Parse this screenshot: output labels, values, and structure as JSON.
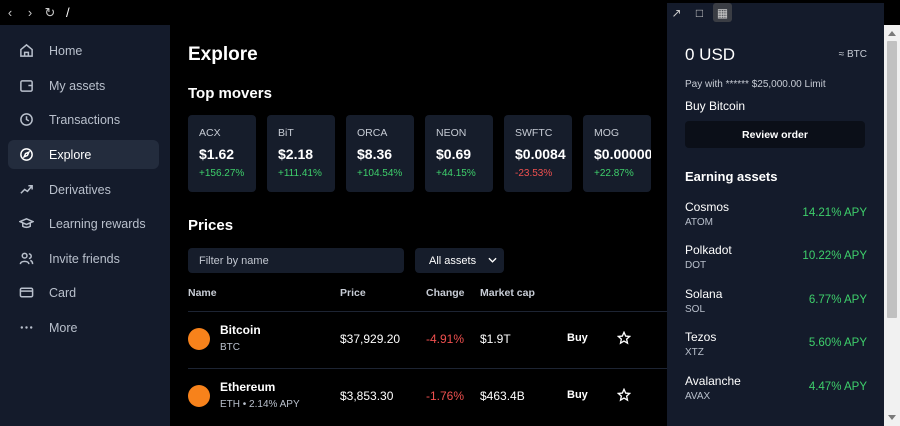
{
  "browser": {
    "url": "/"
  },
  "sidebar": {
    "items": [
      {
        "label": "Home",
        "icon": "home-icon"
      },
      {
        "label": "My assets",
        "icon": "wallet-icon"
      },
      {
        "label": "Transactions",
        "icon": "clock-icon"
      },
      {
        "label": "Explore",
        "icon": "compass-icon",
        "active": true
      },
      {
        "label": "Derivatives",
        "icon": "trend-icon"
      },
      {
        "label": "Learning rewards",
        "icon": "graduation-cap-icon"
      },
      {
        "label": "Invite friends",
        "icon": "users-icon"
      },
      {
        "label": "Card",
        "icon": "card-icon"
      },
      {
        "label": "More",
        "icon": "more-dots-icon"
      }
    ]
  },
  "main": {
    "title": "Explore",
    "top_movers_title": "Top movers",
    "movers": [
      {
        "symbol": "ACX",
        "price": "$1.62",
        "change": "+156.27%",
        "direction": "up"
      },
      {
        "symbol": "BiT",
        "price": "$2.18",
        "change": "+111.41%",
        "direction": "up"
      },
      {
        "symbol": "ORCA",
        "price": "$8.36",
        "change": "+104.54%",
        "direction": "up"
      },
      {
        "symbol": "NEON",
        "price": "$0.69",
        "change": "+44.15%",
        "direction": "up"
      },
      {
        "symbol": "SWFTC",
        "price": "$0.0084",
        "change": "-23.53%",
        "direction": "down"
      },
      {
        "symbol": "MOG",
        "price": "$0.00000",
        "change": "+22.87%",
        "direction": "up"
      }
    ],
    "prices_title": "Prices",
    "filter_placeholder": "Filter by name",
    "asset_filter": "All assets",
    "columns": {
      "name": "Name",
      "price": "Price",
      "change": "Change",
      "market_cap": "Market cap"
    },
    "rows": [
      {
        "name": "Bitcoin",
        "sub": "BTC",
        "price": "$37,929.20",
        "change": "-4.91%",
        "market_cap": "$1.9T",
        "action": "Buy",
        "color": "#f7821b"
      },
      {
        "name": "Ethereum",
        "sub": "ETH • 2.14% APY",
        "price": "$3,853.30",
        "change": "-1.76%",
        "market_cap": "$463.4B",
        "action": "Buy",
        "color": "#f7821b"
      }
    ]
  },
  "trade": {
    "balance": "0 USD",
    "currency_toggle": "≈ BTC",
    "pay_with": "Pay with ****** $25,000.00 Limit",
    "buy_label": "Buy Bitcoin",
    "review_button": "Review order"
  },
  "earning": {
    "title": "Earning assets",
    "items": [
      {
        "name": "Cosmos",
        "symbol": "ATOM",
        "apy": "14.21% APY"
      },
      {
        "name": "Polkadot",
        "symbol": "DOT",
        "apy": "10.22% APY"
      },
      {
        "name": "Solana",
        "symbol": "SOL",
        "apy": "6.77% APY"
      },
      {
        "name": "Tezos",
        "symbol": "XTZ",
        "apy": "5.60% APY"
      },
      {
        "name": "Avalanche",
        "symbol": "AVAX",
        "apy": "4.47% APY"
      }
    ]
  },
  "colors": {
    "positive": "#3ecf6b",
    "negative": "#f0504f",
    "sidebar_bg": "#141b2b",
    "card_bg": "#161d2b"
  }
}
